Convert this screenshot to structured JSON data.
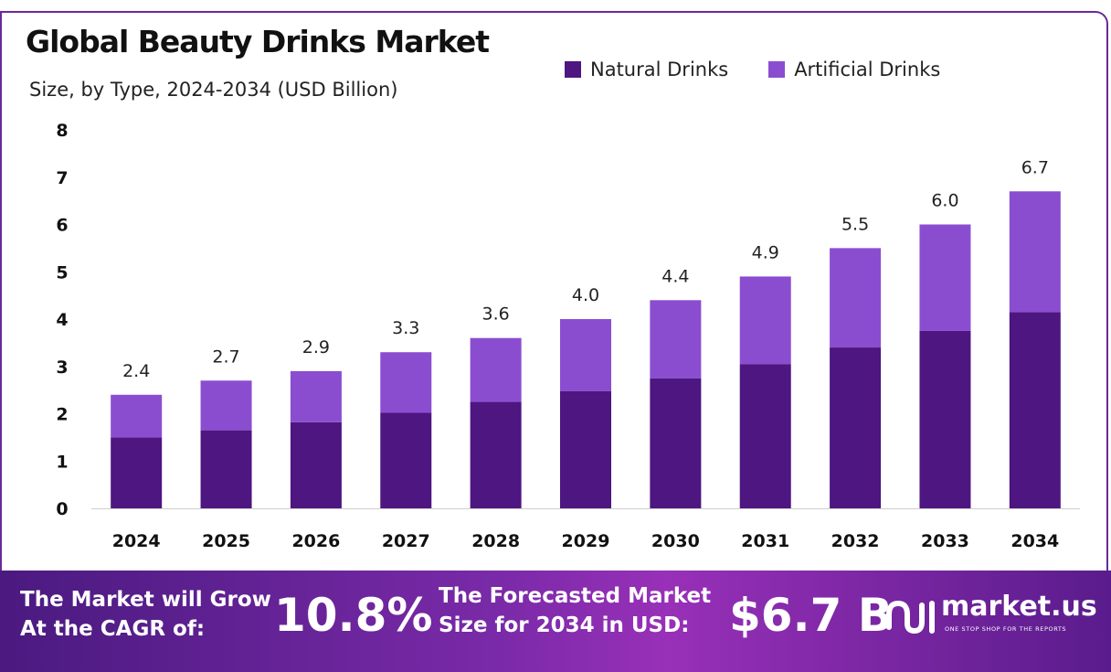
{
  "title": "Global Beauty Drinks Market",
  "subtitle": "Size, by Type, 2024-2034 (USD Billion)",
  "colors": {
    "natural": "#4e1680",
    "artificial": "#8b4dd0",
    "accent": "#6a2a9a"
  },
  "chart_data": {
    "type": "bar",
    "stacked": true,
    "categories": [
      "2024",
      "2025",
      "2026",
      "2027",
      "2028",
      "2029",
      "2030",
      "2031",
      "2032",
      "2033",
      "2034"
    ],
    "series": [
      {
        "name": "Natural Drinks",
        "values": [
          1.5,
          1.65,
          1.82,
          2.02,
          2.25,
          2.48,
          2.75,
          3.05,
          3.4,
          3.75,
          4.15
        ]
      },
      {
        "name": "Artificial Drinks",
        "values": [
          0.9,
          1.05,
          1.08,
          1.28,
          1.35,
          1.52,
          1.65,
          1.85,
          2.1,
          2.25,
          2.55
        ]
      }
    ],
    "totals": [
      "2.4",
      "2.7",
      "2.9",
      "3.3",
      "3.6",
      "4.0",
      "4.4",
      "4.9",
      "5.5",
      "6.0",
      "6.7"
    ],
    "yticks": [
      "0",
      "1",
      "2",
      "3",
      "4",
      "5",
      "6",
      "7",
      "8"
    ],
    "ylim": [
      0,
      8
    ],
    "legend_position": "top-right",
    "grid": false
  },
  "banner": {
    "cagr_line1": "The Market will Grow",
    "cagr_line2": "At the CAGR of:",
    "cagr_value": "10.8%",
    "forecast_line1": "The Forecasted Market",
    "forecast_line2": "Size for 2034 in USD:",
    "forecast_value": "$6.7 B"
  },
  "logo": {
    "name": "market.us",
    "tagline": "ONE STOP SHOP FOR THE REPORTS",
    "icon": "market-us-logo-icon"
  }
}
